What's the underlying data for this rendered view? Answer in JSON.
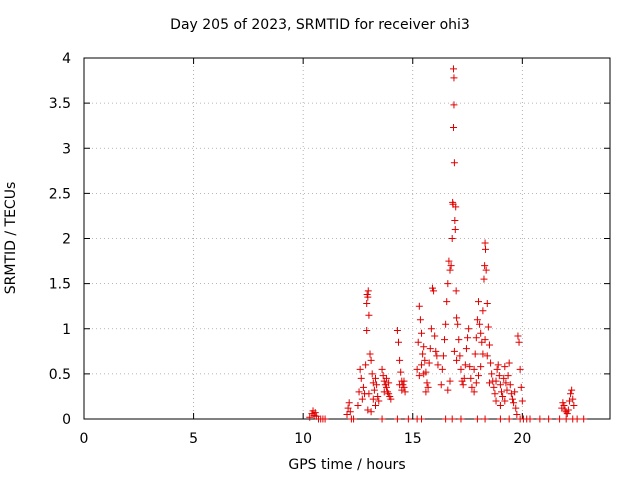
{
  "chart_data": {
    "type": "scatter",
    "title": "Day 205 of 2023, SRMTID for receiver ohi3",
    "xlabel": "GPS time / hours",
    "ylabel": "SRMTID / TECUs",
    "xlim": [
      0,
      24
    ],
    "ylim": [
      0,
      4
    ],
    "xticks": [
      0,
      5,
      10,
      15,
      20
    ],
    "yticks": [
      0,
      0.5,
      1,
      1.5,
      2,
      2.5,
      3,
      3.5,
      4
    ],
    "grid": true,
    "marker": "+",
    "color": "#e00000",
    "series": [
      {
        "name": "SRMTID",
        "points": [
          [
            10.3,
            0.02
          ],
          [
            10.4,
            0.06
          ],
          [
            10.45,
            0.09
          ],
          [
            10.5,
            0.04
          ],
          [
            10.55,
            0.07
          ],
          [
            10.6,
            0.03
          ],
          [
            10.7,
            0.0
          ],
          [
            10.8,
            0.0
          ],
          [
            10.9,
            0.0
          ],
          [
            11.0,
            0.0
          ],
          [
            12.0,
            0.05
          ],
          [
            12.05,
            0.12
          ],
          [
            12.1,
            0.18
          ],
          [
            12.15,
            0.08
          ],
          [
            12.2,
            0.0
          ],
          [
            12.3,
            0.0
          ],
          [
            12.5,
            0.15
          ],
          [
            12.55,
            0.3
          ],
          [
            12.6,
            0.55
          ],
          [
            12.65,
            0.45
          ],
          [
            12.7,
            0.22
          ],
          [
            12.75,
            0.35
          ],
          [
            12.8,
            0.28
          ],
          [
            12.85,
            0.6
          ],
          [
            12.9,
            0.98
          ],
          [
            12.9,
            1.28
          ],
          [
            12.92,
            1.38
          ],
          [
            12.95,
            1.35
          ],
          [
            12.97,
            1.42
          ],
          [
            13.0,
            1.15
          ],
          [
            13.05,
            0.72
          ],
          [
            13.1,
            0.65
          ],
          [
            13.15,
            0.5
          ],
          [
            13.2,
            0.4
          ],
          [
            13.25,
            0.32
          ],
          [
            13.3,
            0.45
          ],
          [
            13.35,
            0.38
          ],
          [
            13.4,
            0.25
          ],
          [
            13.45,
            0.2
          ],
          [
            13.3,
            0.15
          ],
          [
            13.2,
            0.22
          ],
          [
            12.95,
            0.1
          ],
          [
            13.0,
            0.28
          ],
          [
            13.1,
            0.08
          ],
          [
            13.6,
            0.55
          ],
          [
            13.65,
            0.48
          ],
          [
            13.7,
            0.42
          ],
          [
            13.75,
            0.38
          ],
          [
            13.8,
            0.35
          ],
          [
            13.85,
            0.3
          ],
          [
            13.9,
            0.28
          ],
          [
            13.95,
            0.25
          ],
          [
            14.0,
            0.22
          ],
          [
            13.7,
            0.3
          ],
          [
            13.8,
            0.45
          ],
          [
            13.9,
            0.4
          ],
          [
            13.6,
            0.0
          ],
          [
            14.3,
            0.98
          ],
          [
            14.35,
            0.85
          ],
          [
            14.4,
            0.65
          ],
          [
            14.45,
            0.52
          ],
          [
            14.5,
            0.42
          ],
          [
            14.55,
            0.38
          ],
          [
            14.6,
            0.35
          ],
          [
            14.65,
            0.3
          ],
          [
            14.4,
            0.38
          ],
          [
            14.5,
            0.32
          ],
          [
            14.6,
            0.42
          ],
          [
            14.3,
            0.0
          ],
          [
            14.8,
            0.0
          ],
          [
            15.2,
            0.55
          ],
          [
            15.25,
            0.85
          ],
          [
            15.3,
            1.25
          ],
          [
            15.35,
            1.1
          ],
          [
            15.4,
            0.95
          ],
          [
            15.45,
            0.72
          ],
          [
            15.5,
            0.8
          ],
          [
            15.55,
            0.65
          ],
          [
            15.6,
            0.52
          ],
          [
            15.65,
            0.4
          ],
          [
            15.7,
            0.35
          ],
          [
            15.75,
            0.62
          ],
          [
            15.8,
            0.78
          ],
          [
            15.85,
            1.0
          ],
          [
            15.9,
            1.45
          ],
          [
            15.95,
            1.42
          ],
          [
            16.0,
            0.92
          ],
          [
            16.05,
            0.75
          ],
          [
            16.1,
            0.7
          ],
          [
            16.15,
            0.6
          ],
          [
            15.3,
            0.48
          ],
          [
            15.4,
            0.6
          ],
          [
            15.5,
            0.5
          ],
          [
            15.6,
            0.3
          ],
          [
            15.2,
            0.0
          ],
          [
            15.4,
            0.0
          ],
          [
            16.3,
            0.38
          ],
          [
            16.35,
            0.55
          ],
          [
            16.4,
            0.7
          ],
          [
            16.45,
            0.88
          ],
          [
            16.5,
            1.05
          ],
          [
            16.55,
            1.3
          ],
          [
            16.6,
            1.5
          ],
          [
            16.65,
            1.75
          ],
          [
            16.7,
            1.65
          ],
          [
            16.75,
            1.7
          ],
          [
            16.8,
            2.0
          ],
          [
            16.82,
            2.4
          ],
          [
            16.84,
            2.38
          ],
          [
            16.86,
            3.88
          ],
          [
            16.88,
            3.78
          ],
          [
            16.88,
            3.48
          ],
          [
            16.86,
            3.23
          ],
          [
            16.9,
            2.84
          ],
          [
            16.92,
            2.2
          ],
          [
            16.94,
            2.1
          ],
          [
            16.96,
            2.35
          ],
          [
            16.98,
            1.42
          ],
          [
            17.0,
            1.12
          ],
          [
            17.05,
            1.05
          ],
          [
            17.1,
            0.88
          ],
          [
            17.15,
            0.7
          ],
          [
            17.2,
            0.55
          ],
          [
            17.25,
            0.42
          ],
          [
            17.3,
            0.38
          ],
          [
            17.35,
            0.45
          ],
          [
            17.4,
            0.6
          ],
          [
            17.45,
            0.78
          ],
          [
            17.5,
            0.9
          ],
          [
            17.55,
            1.0
          ],
          [
            17.6,
            0.58
          ],
          [
            17.65,
            0.45
          ],
          [
            17.7,
            0.35
          ],
          [
            16.6,
            0.32
          ],
          [
            16.7,
            0.42
          ],
          [
            16.9,
            0.75
          ],
          [
            17.0,
            0.65
          ],
          [
            16.5,
            0.0
          ],
          [
            16.8,
            0.0
          ],
          [
            17.2,
            0.0
          ],
          [
            17.8,
            0.55
          ],
          [
            17.85,
            0.72
          ],
          [
            17.9,
            0.9
          ],
          [
            17.95,
            1.1
          ],
          [
            18.0,
            1.3
          ],
          [
            18.05,
            1.05
          ],
          [
            18.1,
            0.95
          ],
          [
            18.15,
            0.85
          ],
          [
            18.2,
            1.2
          ],
          [
            18.25,
            1.55
          ],
          [
            18.28,
            1.7
          ],
          [
            18.3,
            1.95
          ],
          [
            18.32,
            1.88
          ],
          [
            18.35,
            1.65
          ],
          [
            18.4,
            1.28
          ],
          [
            18.45,
            1.02
          ],
          [
            18.5,
            0.82
          ],
          [
            18.55,
            0.62
          ],
          [
            18.6,
            0.5
          ],
          [
            18.65,
            0.42
          ],
          [
            17.9,
            0.4
          ],
          [
            18.0,
            0.48
          ],
          [
            18.1,
            0.58
          ],
          [
            18.2,
            0.72
          ],
          [
            18.3,
            0.88
          ],
          [
            18.4,
            0.7
          ],
          [
            18.5,
            0.4
          ],
          [
            17.8,
            0.3
          ],
          [
            17.95,
            0.0
          ],
          [
            18.3,
            0.0
          ],
          [
            18.7,
            0.35
          ],
          [
            18.75,
            0.28
          ],
          [
            18.8,
            0.42
          ],
          [
            18.85,
            0.55
          ],
          [
            18.9,
            0.6
          ],
          [
            18.95,
            0.48
          ],
          [
            19.0,
            0.38
          ],
          [
            19.05,
            0.3
          ],
          [
            19.1,
            0.25
          ],
          [
            19.15,
            0.45
          ],
          [
            19.2,
            0.58
          ],
          [
            19.25,
            0.4
          ],
          [
            19.3,
            0.32
          ],
          [
            19.35,
            0.48
          ],
          [
            19.4,
            0.62
          ],
          [
            19.45,
            0.38
          ],
          [
            19.5,
            0.28
          ],
          [
            19.55,
            0.22
          ],
          [
            19.6,
            0.18
          ],
          [
            19.65,
            0.3
          ],
          [
            19.7,
            0.12
          ],
          [
            19.75,
            0.05
          ],
          [
            19.8,
            0.92
          ],
          [
            19.85,
            0.85
          ],
          [
            19.9,
            0.55
          ],
          [
            19.95,
            0.35
          ],
          [
            20.0,
            0.2
          ],
          [
            18.8,
            0.2
          ],
          [
            19.0,
            0.15
          ],
          [
            19.2,
            0.2
          ],
          [
            19.0,
            0.0
          ],
          [
            19.4,
            0.0
          ],
          [
            19.9,
            0.0
          ],
          [
            20.05,
            0.0
          ],
          [
            20.2,
            0.0
          ],
          [
            20.35,
            0.0
          ],
          [
            20.8,
            0.0
          ],
          [
            21.2,
            0.0
          ],
          [
            21.7,
            0.0
          ],
          [
            21.8,
            0.12
          ],
          [
            21.85,
            0.18
          ],
          [
            21.9,
            0.15
          ],
          [
            21.95,
            0.1
          ],
          [
            22.0,
            0.08
          ],
          [
            22.05,
            0.06
          ],
          [
            22.1,
            0.1
          ],
          [
            22.15,
            0.2
          ],
          [
            22.2,
            0.28
          ],
          [
            22.25,
            0.32
          ],
          [
            22.3,
            0.22
          ],
          [
            22.35,
            0.15
          ],
          [
            22.0,
            0.0
          ],
          [
            22.3,
            0.0
          ],
          [
            22.5,
            0.0
          ],
          [
            22.8,
            0.0
          ]
        ]
      }
    ]
  }
}
